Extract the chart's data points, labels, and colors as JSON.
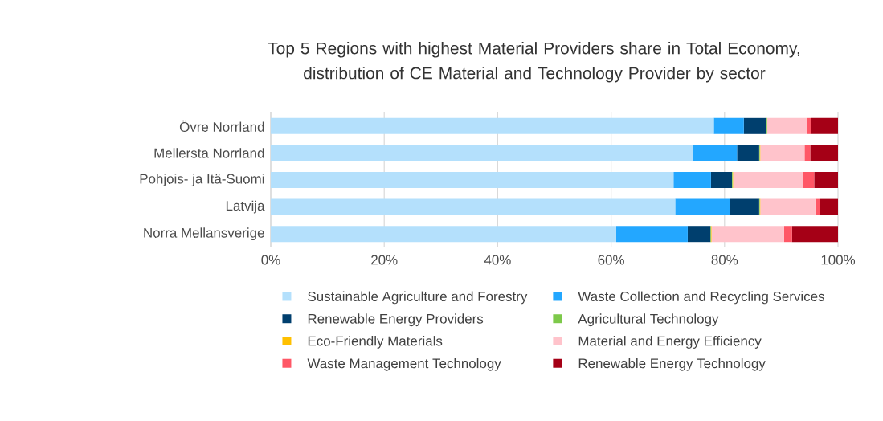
{
  "chart_data": {
    "type": "bar",
    "orientation": "horizontal",
    "stacked": true,
    "title": "Top 5 Regions with highest Material Providers share in Total Economy, distribution of CE Material and Technology Provider by sector",
    "categories": [
      "Övre Norrland",
      "Mellersta Norrland",
      "Pohjois- ja Itä-Suomi",
      "Latvija",
      "Norra Mellansverige"
    ],
    "series": [
      {
        "name": "Sustainable Agriculture and Forestry",
        "color": "#b4e0fc",
        "values": [
          78.1,
          74.5,
          71.0,
          71.3,
          60.9
        ]
      },
      {
        "name": "Waste Collection and Recycling Services",
        "color": "#23a7ff",
        "values": [
          5.3,
          7.7,
          6.6,
          9.7,
          12.6
        ]
      },
      {
        "name": "Renewable Energy Providers",
        "color": "#003f6e",
        "values": [
          3.9,
          3.9,
          3.7,
          5.1,
          4.0
        ]
      },
      {
        "name": "Agricultural Technology",
        "color": "#7dc94a",
        "values": [
          0.2,
          0.1,
          0.1,
          0.1,
          0.1
        ]
      },
      {
        "name": "Eco-Friendly Materials",
        "color": "#ffc000",
        "values": [
          0.0,
          0.1,
          0.1,
          0.1,
          0.1
        ]
      },
      {
        "name": "Material and Energy Efficiency",
        "color": "#ffc3cb",
        "values": [
          7.1,
          7.8,
          12.4,
          9.7,
          12.8
        ]
      },
      {
        "name": "Waste Management Technology",
        "color": "#ff5766",
        "values": [
          0.7,
          1.0,
          1.9,
          0.8,
          1.4
        ]
      },
      {
        "name": "Renewable Energy Technology",
        "color": "#a50016",
        "values": [
          4.7,
          4.9,
          4.2,
          3.2,
          8.1
        ]
      }
    ],
    "xlim": [
      0,
      100
    ],
    "xticks": [
      {
        "value": 0,
        "label": "0%"
      },
      {
        "value": 20,
        "label": "20%"
      },
      {
        "value": 40,
        "label": "40%"
      },
      {
        "value": 60,
        "label": "60%"
      },
      {
        "value": 80,
        "label": "80%"
      },
      {
        "value": 100,
        "label": "100%"
      }
    ],
    "grid": "x",
    "legend": "bottom"
  }
}
